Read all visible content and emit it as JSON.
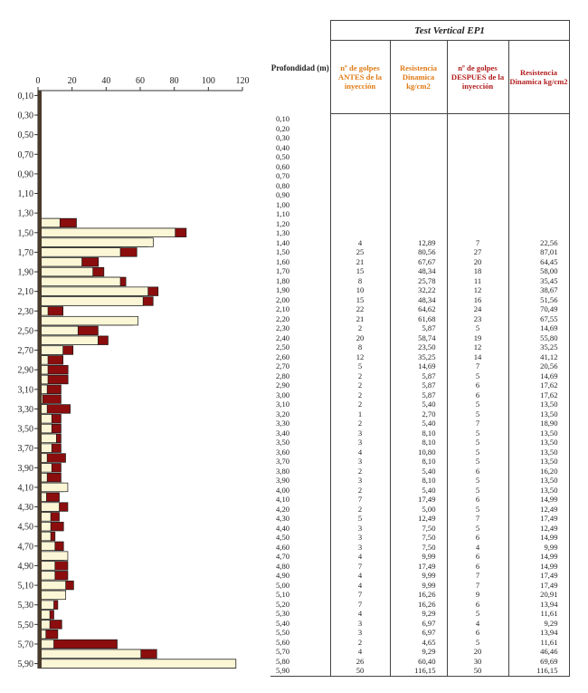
{
  "table": {
    "title": "Test Vertical EP1",
    "depth_header": "Profondidad (m)",
    "headers": [
      "nº de golpes ANTES de la inyección",
      "Resistencia Dinamica kg/cm2",
      "nº de golpes DESPUES de la inyección",
      "Resistencia Dinamica kg/cm2"
    ],
    "rows": [
      [
        "0,10",
        "",
        "",
        "",
        ""
      ],
      [
        "0,20",
        "",
        "",
        "",
        ""
      ],
      [
        "0,30",
        "",
        "",
        "",
        ""
      ],
      [
        "0,40",
        "",
        "",
        "",
        ""
      ],
      [
        "0,50",
        "",
        "",
        "",
        ""
      ],
      [
        "0,60",
        "",
        "",
        "",
        ""
      ],
      [
        "0,70",
        "",
        "",
        "",
        ""
      ],
      [
        "0,80",
        "",
        "",
        "",
        ""
      ],
      [
        "0,90",
        "",
        "",
        "",
        ""
      ],
      [
        "1,00",
        "",
        "",
        "",
        ""
      ],
      [
        "1,10",
        "",
        "",
        "",
        ""
      ],
      [
        "1,20",
        "",
        "",
        "",
        ""
      ],
      [
        "1,30",
        "",
        "",
        "",
        ""
      ],
      [
        "1,40",
        "4",
        "12,89",
        "7",
        "22,56"
      ],
      [
        "1,50",
        "25",
        "80,56",
        "27",
        "87,01"
      ],
      [
        "1,60",
        "21",
        "67,67",
        "20",
        "64,45"
      ],
      [
        "1,70",
        "15",
        "48,34",
        "18",
        "58,00"
      ],
      [
        "1,80",
        "8",
        "25,78",
        "11",
        "35,45"
      ],
      [
        "1,90",
        "10",
        "32,22",
        "12",
        "38,67"
      ],
      [
        "2,00",
        "15",
        "48,34",
        "16",
        "51,56"
      ],
      [
        "2,10",
        "22",
        "64,62",
        "24",
        "70,49"
      ],
      [
        "2,20",
        "21",
        "61,68",
        "23",
        "67,55"
      ],
      [
        "2,30",
        "2",
        "5,87",
        "5",
        "14,69"
      ],
      [
        "2,40",
        "20",
        "58,74",
        "19",
        "55,80"
      ],
      [
        "2,50",
        "8",
        "23,50",
        "12",
        "35,25"
      ],
      [
        "2,60",
        "12",
        "35,25",
        "14",
        "41,12"
      ],
      [
        "2,70",
        "5",
        "14,69",
        "7",
        "20,56"
      ],
      [
        "2,80",
        "2",
        "5,87",
        "5",
        "14,69"
      ],
      [
        "2,90",
        "2",
        "5,87",
        "6",
        "17,62"
      ],
      [
        "3,00",
        "2",
        "5,87",
        "6",
        "17,62"
      ],
      [
        "3,10",
        "2",
        "5,40",
        "5",
        "13,50"
      ],
      [
        "3,20",
        "1",
        "2,70",
        "5",
        "13,50"
      ],
      [
        "3,30",
        "2",
        "5,40",
        "7",
        "18,90"
      ],
      [
        "3,40",
        "3",
        "8,10",
        "5",
        "13,50"
      ],
      [
        "3,50",
        "3",
        "8,10",
        "5",
        "13,50"
      ],
      [
        "3,60",
        "4",
        "10,80",
        "5",
        "13,50"
      ],
      [
        "3,70",
        "3",
        "8,10",
        "5",
        "13,50"
      ],
      [
        "3,80",
        "2",
        "5,40",
        "6",
        "16,20"
      ],
      [
        "3,90",
        "3",
        "8,10",
        "5",
        "13,50"
      ],
      [
        "4,00",
        "2",
        "5,40",
        "5",
        "13,50"
      ],
      [
        "4,10",
        "7",
        "17,49",
        "6",
        "14,99"
      ],
      [
        "4,20",
        "2",
        "5,00",
        "5",
        "12,49"
      ],
      [
        "4,30",
        "5",
        "12,49",
        "7",
        "17,49"
      ],
      [
        "4,40",
        "3",
        "7,50",
        "5",
        "12,49"
      ],
      [
        "4,50",
        "3",
        "7,50",
        "6",
        "14,99"
      ],
      [
        "4,60",
        "3",
        "7,50",
        "4",
        "9,99"
      ],
      [
        "4,70",
        "4",
        "9,99",
        "6",
        "14,99"
      ],
      [
        "4,80",
        "7",
        "17,49",
        "6",
        "14,99"
      ],
      [
        "4,90",
        "4",
        "9,99",
        "7",
        "17,49"
      ],
      [
        "5,00",
        "4",
        "9,99",
        "7",
        "17,49"
      ],
      [
        "5,10",
        "7",
        "16,26",
        "9",
        "20,91"
      ],
      [
        "5,20",
        "7",
        "16,26",
        "6",
        "13,94"
      ],
      [
        "5,30",
        "4",
        "9,29",
        "5",
        "11,61"
      ],
      [
        "5,40",
        "3",
        "6,97",
        "4",
        "9,29"
      ],
      [
        "5,50",
        "3",
        "6,97",
        "6",
        "13,94"
      ],
      [
        "5,60",
        "2",
        "4,65",
        "5",
        "11,61"
      ],
      [
        "5,70",
        "4",
        "9,29",
        "20",
        "46,46"
      ],
      [
        "5,80",
        "26",
        "60,40",
        "30",
        "69,69"
      ],
      [
        "5,90",
        "50",
        "116,15",
        "50",
        "116,15"
      ]
    ]
  },
  "chart_data": {
    "type": "bar",
    "orientation": "horizontal",
    "xlim": [
      0,
      120
    ],
    "x_ticks": [
      "0",
      "20",
      "40",
      "60",
      "80",
      "100",
      "120"
    ],
    "y_ticks": [
      "0,10",
      "0,30",
      "0,50",
      "0,70",
      "0,90",
      "1,10",
      "1,30",
      "1,50",
      "1,70",
      "1,90",
      "2,10",
      "2,30",
      "2,50",
      "2,70",
      "2,90",
      "3,10",
      "3,30",
      "3,50",
      "3,70",
      "3,90",
      "4,10",
      "4,30",
      "4,50",
      "4,70",
      "4,90",
      "5,10",
      "5,30",
      "5,50",
      "5,70",
      "5,90"
    ],
    "depths": [
      0.1,
      0.2,
      0.3,
      0.4,
      0.5,
      0.6,
      0.7,
      0.8,
      0.9,
      1.0,
      1.1,
      1.2,
      1.3,
      1.4,
      1.5,
      1.6,
      1.7,
      1.8,
      1.9,
      2.0,
      2.1,
      2.2,
      2.3,
      2.4,
      2.5,
      2.6,
      2.7,
      2.8,
      2.9,
      3.0,
      3.1,
      3.2,
      3.3,
      3.4,
      3.5,
      3.6,
      3.7,
      3.8,
      3.9,
      4.0,
      4.1,
      4.2,
      4.3,
      4.4,
      4.5,
      4.6,
      4.7,
      4.8,
      4.9,
      5.0,
      5.1,
      5.2,
      5.3,
      5.4,
      5.5,
      5.6,
      5.7,
      5.8,
      5.9
    ],
    "series": [
      {
        "values": [
          0,
          0,
          0,
          0,
          0,
          0,
          0,
          0,
          0,
          0,
          0,
          0,
          0,
          12.89,
          80.56,
          67.67,
          48.34,
          25.78,
          32.22,
          48.34,
          64.62,
          61.68,
          5.87,
          58.74,
          23.5,
          35.25,
          14.69,
          5.87,
          5.87,
          5.87,
          5.4,
          2.7,
          5.4,
          8.1,
          8.1,
          10.8,
          8.1,
          5.4,
          8.1,
          5.4,
          17.49,
          5.0,
          12.49,
          7.5,
          7.5,
          7.5,
          9.99,
          17.49,
          9.99,
          9.99,
          16.26,
          16.26,
          9.29,
          6.97,
          6.97,
          4.65,
          9.29,
          60.4,
          116.15
        ],
        "color": "#fbf6d6"
      },
      {
        "values": [
          0,
          0,
          0,
          0,
          0,
          0,
          0,
          0,
          0,
          0,
          0,
          0,
          0,
          22.56,
          87.01,
          64.45,
          58.0,
          35.45,
          38.67,
          51.56,
          70.49,
          67.55,
          14.69,
          55.8,
          35.25,
          41.12,
          20.56,
          14.69,
          17.62,
          17.62,
          13.5,
          13.5,
          18.9,
          13.5,
          13.5,
          13.5,
          13.5,
          16.2,
          13.5,
          13.5,
          14.99,
          12.49,
          17.49,
          12.49,
          14.99,
          9.99,
          14.99,
          14.99,
          17.49,
          17.49,
          20.91,
          13.94,
          11.61,
          9.29,
          13.94,
          11.61,
          46.46,
          69.69,
          116.15
        ],
        "color": "#8b0d0d"
      }
    ]
  }
}
